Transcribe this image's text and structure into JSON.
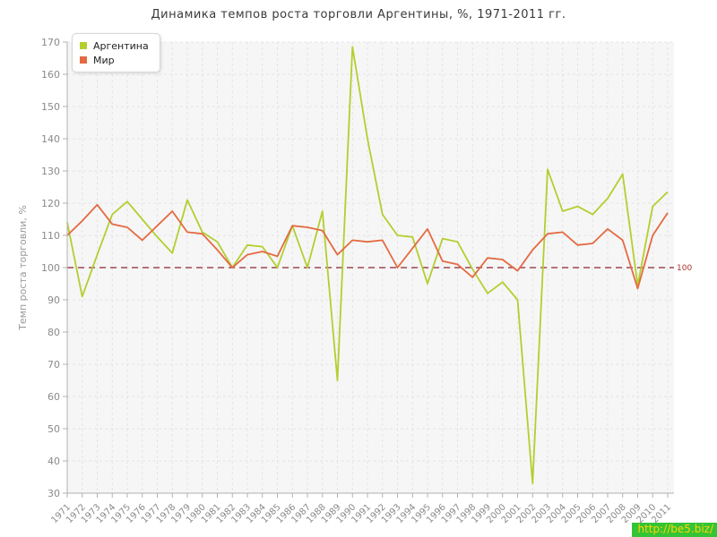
{
  "title": "Динамика темпов роста торговли Аргентины, %, 1971-2011 гг.",
  "watermark": "http://be5.biz/",
  "reference_label": "100",
  "chart_data": {
    "type": "line",
    "title": "Динамика темпов роста торговли Аргентины, %, 1971-2011 гг.",
    "xlabel": "",
    "ylabel": "Темп роста торговли, %",
    "ylim": [
      30,
      170
    ],
    "ytick_step": 10,
    "yticks": [
      30,
      40,
      50,
      60,
      70,
      80,
      90,
      100,
      110,
      120,
      130,
      140,
      150,
      160,
      170
    ],
    "grid": true,
    "legend_position": "top-left",
    "reference_line": {
      "value": 100,
      "label": "100",
      "color": "#8b2333"
    },
    "x": [
      1971,
      1972,
      1973,
      1974,
      1975,
      1976,
      1977,
      1978,
      1979,
      1980,
      1981,
      1982,
      1983,
      1984,
      1985,
      1986,
      1987,
      1988,
      1989,
      1990,
      1991,
      1992,
      1993,
      1994,
      1995,
      1996,
      1997,
      1998,
      1999,
      2000,
      2001,
      2002,
      2003,
      2004,
      2005,
      2006,
      2007,
      2008,
      2009,
      2010,
      2011
    ],
    "series": [
      {
        "name": "Аргентина",
        "color": "#b2cf2e",
        "values": [
          114,
          91,
          104,
          116.5,
          120.5,
          115,
          109.5,
          104.5,
          121,
          111,
          108,
          100,
          107,
          106.5,
          100,
          113,
          100,
          117.5,
          65,
          168.5,
          140,
          116.5,
          110,
          109.5,
          95,
          109,
          108,
          99.5,
          92,
          95.5,
          90,
          33,
          130.5,
          117.5,
          119,
          116.5,
          121.5,
          129,
          94.5,
          119,
          123.5
        ]
      },
      {
        "name": "Мир",
        "color": "#e46a42",
        "values": [
          110,
          114.5,
          119.5,
          113.5,
          112.5,
          108.5,
          113,
          117.5,
          111,
          110.5,
          105.5,
          100,
          104,
          105,
          103.5,
          113,
          112.5,
          111.5,
          104,
          108.5,
          108,
          108.5,
          100,
          106,
          112,
          102,
          101,
          97,
          103,
          102.5,
          99,
          105.5,
          110.5,
          111,
          107,
          107.5,
          112,
          108.5,
          93.5,
          110,
          117
        ]
      }
    ]
  },
  "style": {
    "plot_bg": "#f6f6f6",
    "grid_color": "#e4e4e4",
    "axis_color": "#b0b0b0",
    "tick_label_color": "#8a8a8a",
    "ref_label_color": "#aa3333"
  }
}
